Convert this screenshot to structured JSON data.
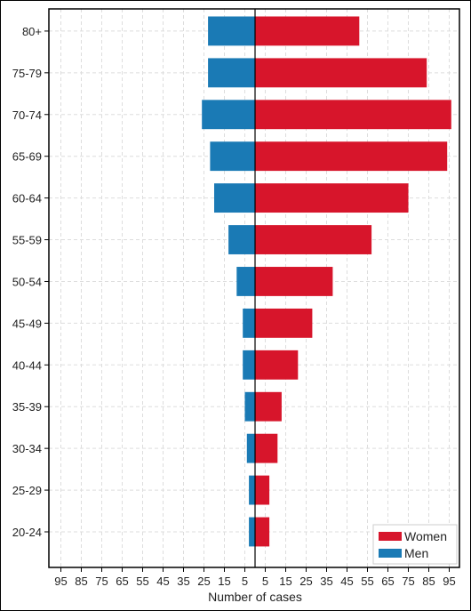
{
  "chart_data": {
    "type": "bar",
    "orientation": "horizontal",
    "layout": "population-pyramid",
    "title": "",
    "xlabel": "Number of cases",
    "ylabel": "",
    "categories": [
      "20-24",
      "25-29",
      "30-34",
      "35-39",
      "40-44",
      "45-49",
      "50-54",
      "55-59",
      "60-64",
      "65-69",
      "70-74",
      "75-79",
      "80+"
    ],
    "series": [
      {
        "name": "Women",
        "color": "#d7152b",
        "side": "right",
        "values": [
          7,
          7,
          11,
          13,
          21,
          28,
          38,
          57,
          75,
          94,
          96,
          84,
          51
        ]
      },
      {
        "name": "Men",
        "color": "#1a7ab5",
        "side": "left",
        "values": [
          3,
          3,
          4,
          5,
          6,
          6,
          9,
          13,
          20,
          22,
          26,
          23,
          23
        ]
      }
    ],
    "xticks_left": [
      95,
      85,
      75,
      65,
      55,
      45,
      35,
      25,
      15,
      5
    ],
    "xticks_right": [
      5,
      15,
      25,
      35,
      45,
      55,
      65,
      75,
      85,
      95
    ],
    "xlim": [
      -100,
      100
    ],
    "grid": true,
    "legend_position": "bottom-right"
  }
}
